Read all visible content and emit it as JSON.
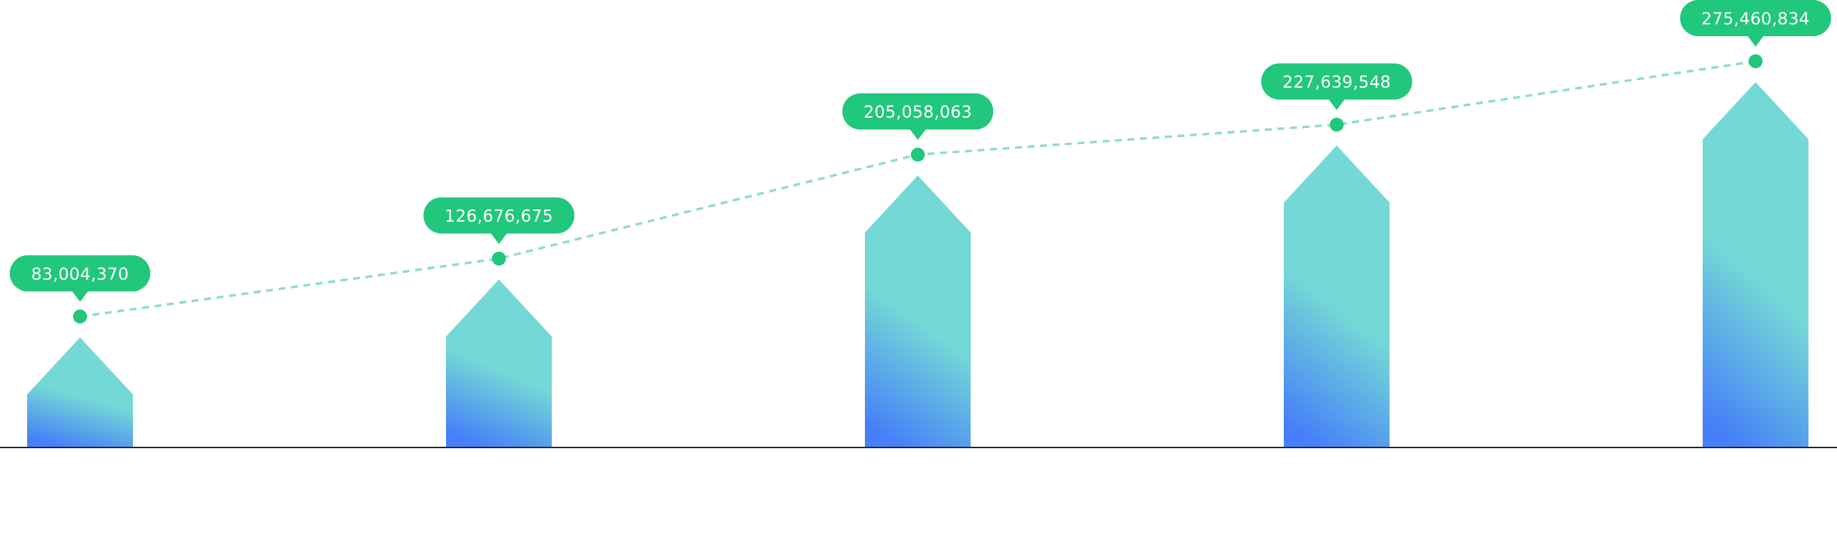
{
  "chart_data": {
    "type": "bar",
    "categories": [
      "",
      "",
      "",
      "",
      ""
    ],
    "values": [
      83004370,
      126676675,
      205058063,
      227639548,
      275460834
    ],
    "value_labels": [
      "83,004,370",
      "126,676,675",
      "205,058,063",
      "227,639,548",
      "275,460,834"
    ],
    "title": "",
    "xlabel": "",
    "ylabel": "",
    "ylim": [
      0,
      300000000
    ],
    "grid": false,
    "legend": "none",
    "overlay": "dashed-line",
    "colors": {
      "bar_top": "#74D8D6",
      "bar_bottom": "#4680F8",
      "line": "#8FDDC6",
      "marker": "#21C77B",
      "label_bg": "#21C77B",
      "label_text": "#FFFFFF",
      "axis": "#222222"
    }
  }
}
